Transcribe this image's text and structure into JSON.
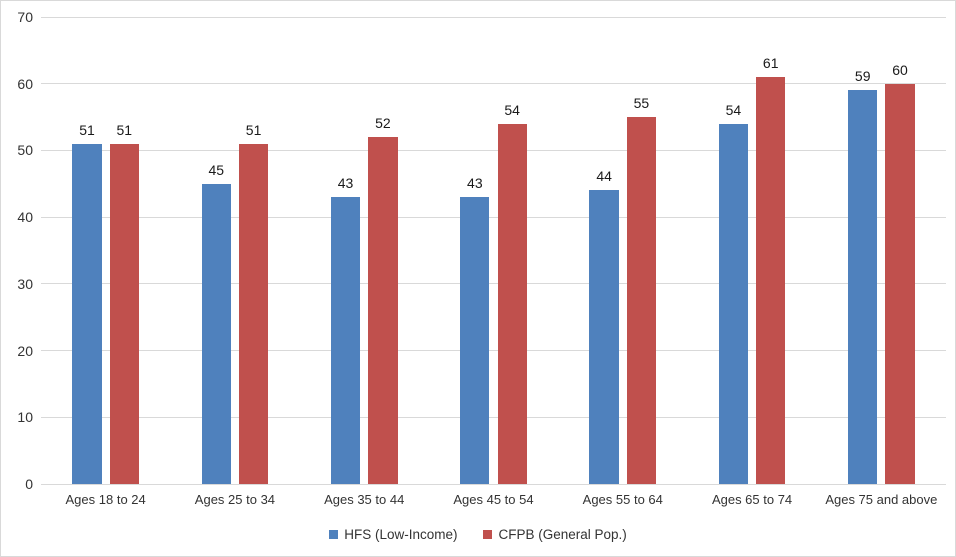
{
  "chart_data": {
    "type": "bar",
    "categories": [
      "Ages 18 to 24",
      "Ages 25 to 34",
      "Ages 35 to 44",
      "Ages 45 to 54",
      "Ages 55 to 64",
      "Ages 65 to 74",
      "Ages 75 and above"
    ],
    "series": [
      {
        "name": "HFS (Low-Income)",
        "color": "#4F81BD",
        "values": [
          51,
          45,
          43,
          43,
          44,
          54,
          59
        ]
      },
      {
        "name": "CFPB (General Pop.)",
        "color": "#C0504D",
        "values": [
          51,
          51,
          52,
          54,
          55,
          61,
          60
        ]
      }
    ],
    "title": "",
    "ylim": [
      0,
      70
    ],
    "yticks": [
      0,
      10,
      20,
      30,
      40,
      50,
      60,
      70
    ],
    "grid": true,
    "legend_position": "bottom",
    "data_labels": true
  },
  "colors": {
    "gridline": "#D9D9D9",
    "frame_border": "#D9D9D9",
    "tick_text": "#333333",
    "label_text": "#1a1a1a"
  }
}
